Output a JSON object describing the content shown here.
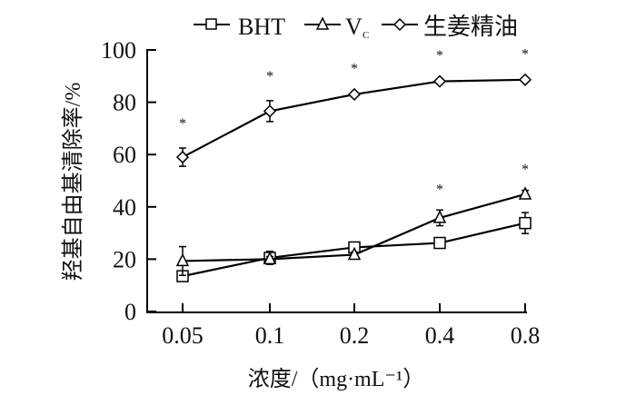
{
  "chart_data": {
    "type": "line",
    "title": "",
    "xlabel": "浓度/（mg·mL⁻¹）",
    "ylabel": "羟基自由基清除率/%",
    "categories": [
      "0.05",
      "0.1",
      "0.2",
      "0.4",
      "0.8"
    ],
    "yticks": [
      "0",
      "20",
      "40",
      "60",
      "80",
      "100"
    ],
    "ylim": [
      0,
      100
    ],
    "legend_position": "top",
    "series": [
      {
        "name": "BHT",
        "marker": "square",
        "values": [
          13.5,
          20.5,
          24.5,
          26.2,
          33.8
        ],
        "errors": [
          1.5,
          2.5,
          1.5,
          1,
          4
        ]
      },
      {
        "name": "V",
        "name_sub": "C",
        "marker": "triangle",
        "values": [
          19.3,
          20,
          21.7,
          35.8,
          44.8
        ],
        "errors": [
          5.5,
          1,
          1,
          3,
          1.5
        ]
      },
      {
        "name": "生姜精油",
        "marker": "diamond",
        "values": [
          59,
          76.6,
          83,
          88,
          88.6
        ],
        "errors": [
          3.5,
          4,
          0.5,
          0.5,
          0.5
        ]
      }
    ],
    "annotations": {
      "significance_mark": "*",
      "ginger_marks": [
        0,
        1,
        2,
        3,
        4
      ],
      "vc_marks": [
        3,
        4
      ]
    }
  }
}
